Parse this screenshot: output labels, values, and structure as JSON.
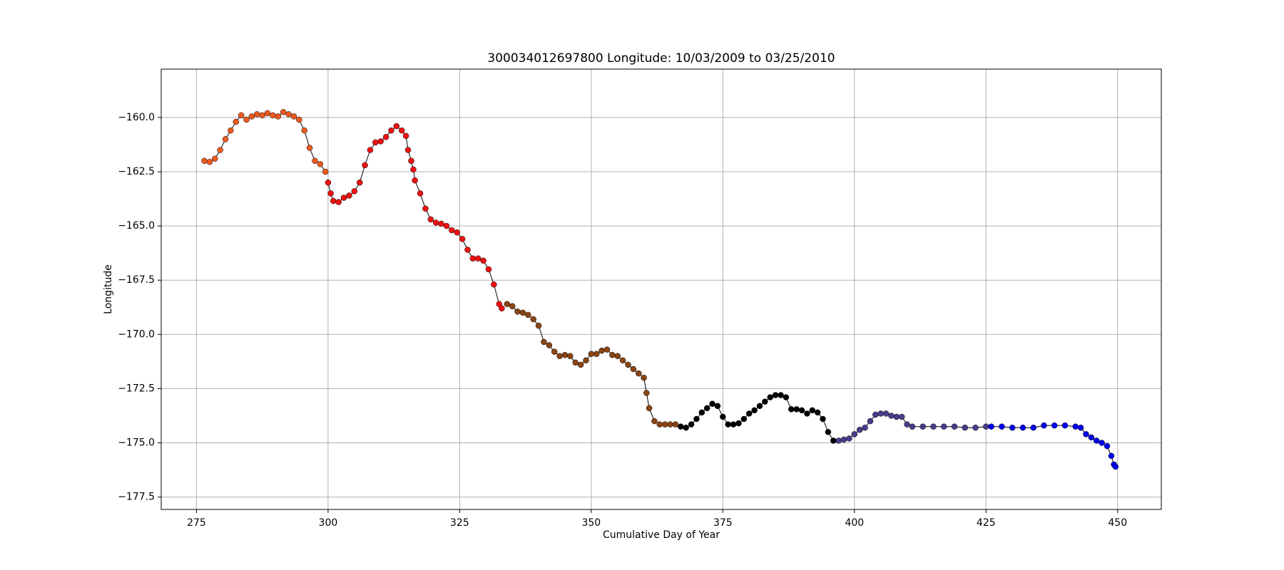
{
  "chart_data": {
    "type": "scatter",
    "title": "300034012697800 Longitude: 10/03/2009 to 03/25/2010",
    "xlabel": "Cumulative Day of Year",
    "ylabel": "Longitude",
    "xlim": [
      268.3,
      458.3
    ],
    "ylim": [
      -178.07,
      -157.77
    ],
    "xticks": [
      275,
      300,
      325,
      350,
      375,
      400,
      425,
      450
    ],
    "yticks": [
      {
        "value": -160,
        "label": "−160.0"
      },
      {
        "value": -162.5,
        "label": "−162.5"
      },
      {
        "value": -165,
        "label": "−165.0"
      },
      {
        "value": -167.5,
        "label": "−167.5"
      },
      {
        "value": -170,
        "label": "−170.0"
      },
      {
        "value": -172.5,
        "label": "−172.5"
      },
      {
        "value": -175,
        "label": "−175.0"
      },
      {
        "value": -177.5,
        "label": "−177.5"
      }
    ],
    "grid": true,
    "series": [
      {
        "color": "#ef5a1f",
        "x": [
          276.5,
          277.5,
          278.5,
          279.5,
          280.5,
          281.5,
          282.5,
          283.5,
          284.5,
          285.5,
          286.5,
          287.5,
          288.5,
          289.5,
          290.5,
          291.5,
          292.5,
          293.5,
          294.5,
          295.5,
          296.5,
          297.5,
          298.5,
          299.5
        ],
        "values": [
          -162.0,
          -162.05,
          -161.9,
          -161.5,
          -161.0,
          -160.6,
          -160.2,
          -159.9,
          -160.1,
          -159.95,
          -159.85,
          -159.9,
          -159.8,
          -159.9,
          -159.95,
          -159.75,
          -159.85,
          -159.95,
          -160.1,
          -160.6,
          -161.4,
          -162.0,
          -162.15,
          -162.5
        ]
      },
      {
        "color": "#ee1111",
        "x": [
          300,
          300.5,
          301,
          302,
          303,
          304,
          305,
          306,
          307,
          308,
          309,
          310,
          311,
          312,
          313,
          314,
          314.8,
          315.2,
          315.8,
          316.2,
          316.5,
          317.5,
          318.5,
          319.5,
          320.5,
          321.5,
          322.5,
          323.5,
          324.5,
          325.5,
          326.5,
          327.5,
          328.5,
          329.5,
          330.5,
          331.5,
          332.5,
          333
        ],
        "values": [
          -163.0,
          -163.5,
          -163.85,
          -163.9,
          -163.7,
          -163.6,
          -163.4,
          -163.0,
          -162.2,
          -161.5,
          -161.15,
          -161.1,
          -160.9,
          -160.6,
          -160.4,
          -160.6,
          -160.85,
          -161.5,
          -162.0,
          -162.4,
          -162.9,
          -163.5,
          -164.2,
          -164.7,
          -164.85,
          -164.9,
          -165.0,
          -165.2,
          -165.3,
          -165.6,
          -166.1,
          -166.5,
          -166.5,
          -166.6,
          -167.0,
          -167.7,
          -168.6,
          -168.8
        ]
      },
      {
        "color": "#8b4513",
        "x": [
          334,
          335,
          336,
          337,
          338,
          339,
          340,
          341,
          342,
          343,
          344,
          345,
          346,
          347,
          348,
          349,
          350,
          351,
          352,
          353,
          354,
          355,
          356,
          357,
          358,
          359,
          360,
          360.5,
          361,
          362,
          363,
          364,
          365,
          366
        ],
        "values": [
          -168.6,
          -168.7,
          -168.95,
          -169.0,
          -169.1,
          -169.3,
          -169.6,
          -170.35,
          -170.5,
          -170.8,
          -171.0,
          -170.95,
          -171.0,
          -171.3,
          -171.4,
          -171.2,
          -170.9,
          -170.9,
          -170.75,
          -170.7,
          -170.95,
          -171.0,
          -171.2,
          -171.4,
          -171.6,
          -171.8,
          -172.0,
          -172.7,
          -173.4,
          -174.0,
          -174.15,
          -174.15,
          -174.15,
          -174.15
        ]
      },
      {
        "color": "#000000",
        "x": [
          367,
          368,
          369,
          370,
          371,
          372,
          373,
          374,
          375,
          376,
          377,
          378,
          379,
          380,
          381,
          382,
          383,
          384,
          385,
          386,
          387,
          388,
          389,
          390,
          391,
          392,
          393,
          394,
          395,
          396
        ],
        "values": [
          -174.25,
          -174.3,
          -174.15,
          -173.9,
          -173.6,
          -173.4,
          -173.2,
          -173.3,
          -173.8,
          -174.15,
          -174.15,
          -174.1,
          -173.9,
          -173.65,
          -173.5,
          -173.3,
          -173.1,
          -172.9,
          -172.8,
          -172.8,
          -172.9,
          -173.45,
          -173.45,
          -173.5,
          -173.65,
          -173.5,
          -173.6,
          -173.9,
          -174.5,
          -174.9
        ]
      },
      {
        "color": "#483d8b",
        "x": [
          397,
          398,
          399,
          400,
          401,
          402,
          403,
          404,
          405,
          406,
          407,
          408,
          409,
          410,
          411,
          413,
          415,
          417,
          419,
          421,
          423,
          425
        ],
        "values": [
          -174.9,
          -174.85,
          -174.8,
          -174.6,
          -174.4,
          -174.3,
          -174.0,
          -173.7,
          -173.65,
          -173.65,
          -173.75,
          -173.8,
          -173.8,
          -174.15,
          -174.25,
          -174.25,
          -174.25,
          -174.25,
          -174.25,
          -174.3,
          -174.3,
          -174.25
        ]
      },
      {
        "color": "#0000ee",
        "x": [
          426,
          428,
          430,
          432,
          434,
          436,
          438,
          440,
          442,
          443,
          444,
          445,
          446,
          447,
          448,
          448.8,
          449.3,
          449.6
        ],
        "values": [
          -174.25,
          -174.25,
          -174.3,
          -174.3,
          -174.3,
          -174.2,
          -174.2,
          -174.2,
          -174.25,
          -174.3,
          -174.6,
          -174.75,
          -174.9,
          -175.0,
          -175.15,
          -175.6,
          -176.0,
          -176.1
        ]
      }
    ]
  }
}
